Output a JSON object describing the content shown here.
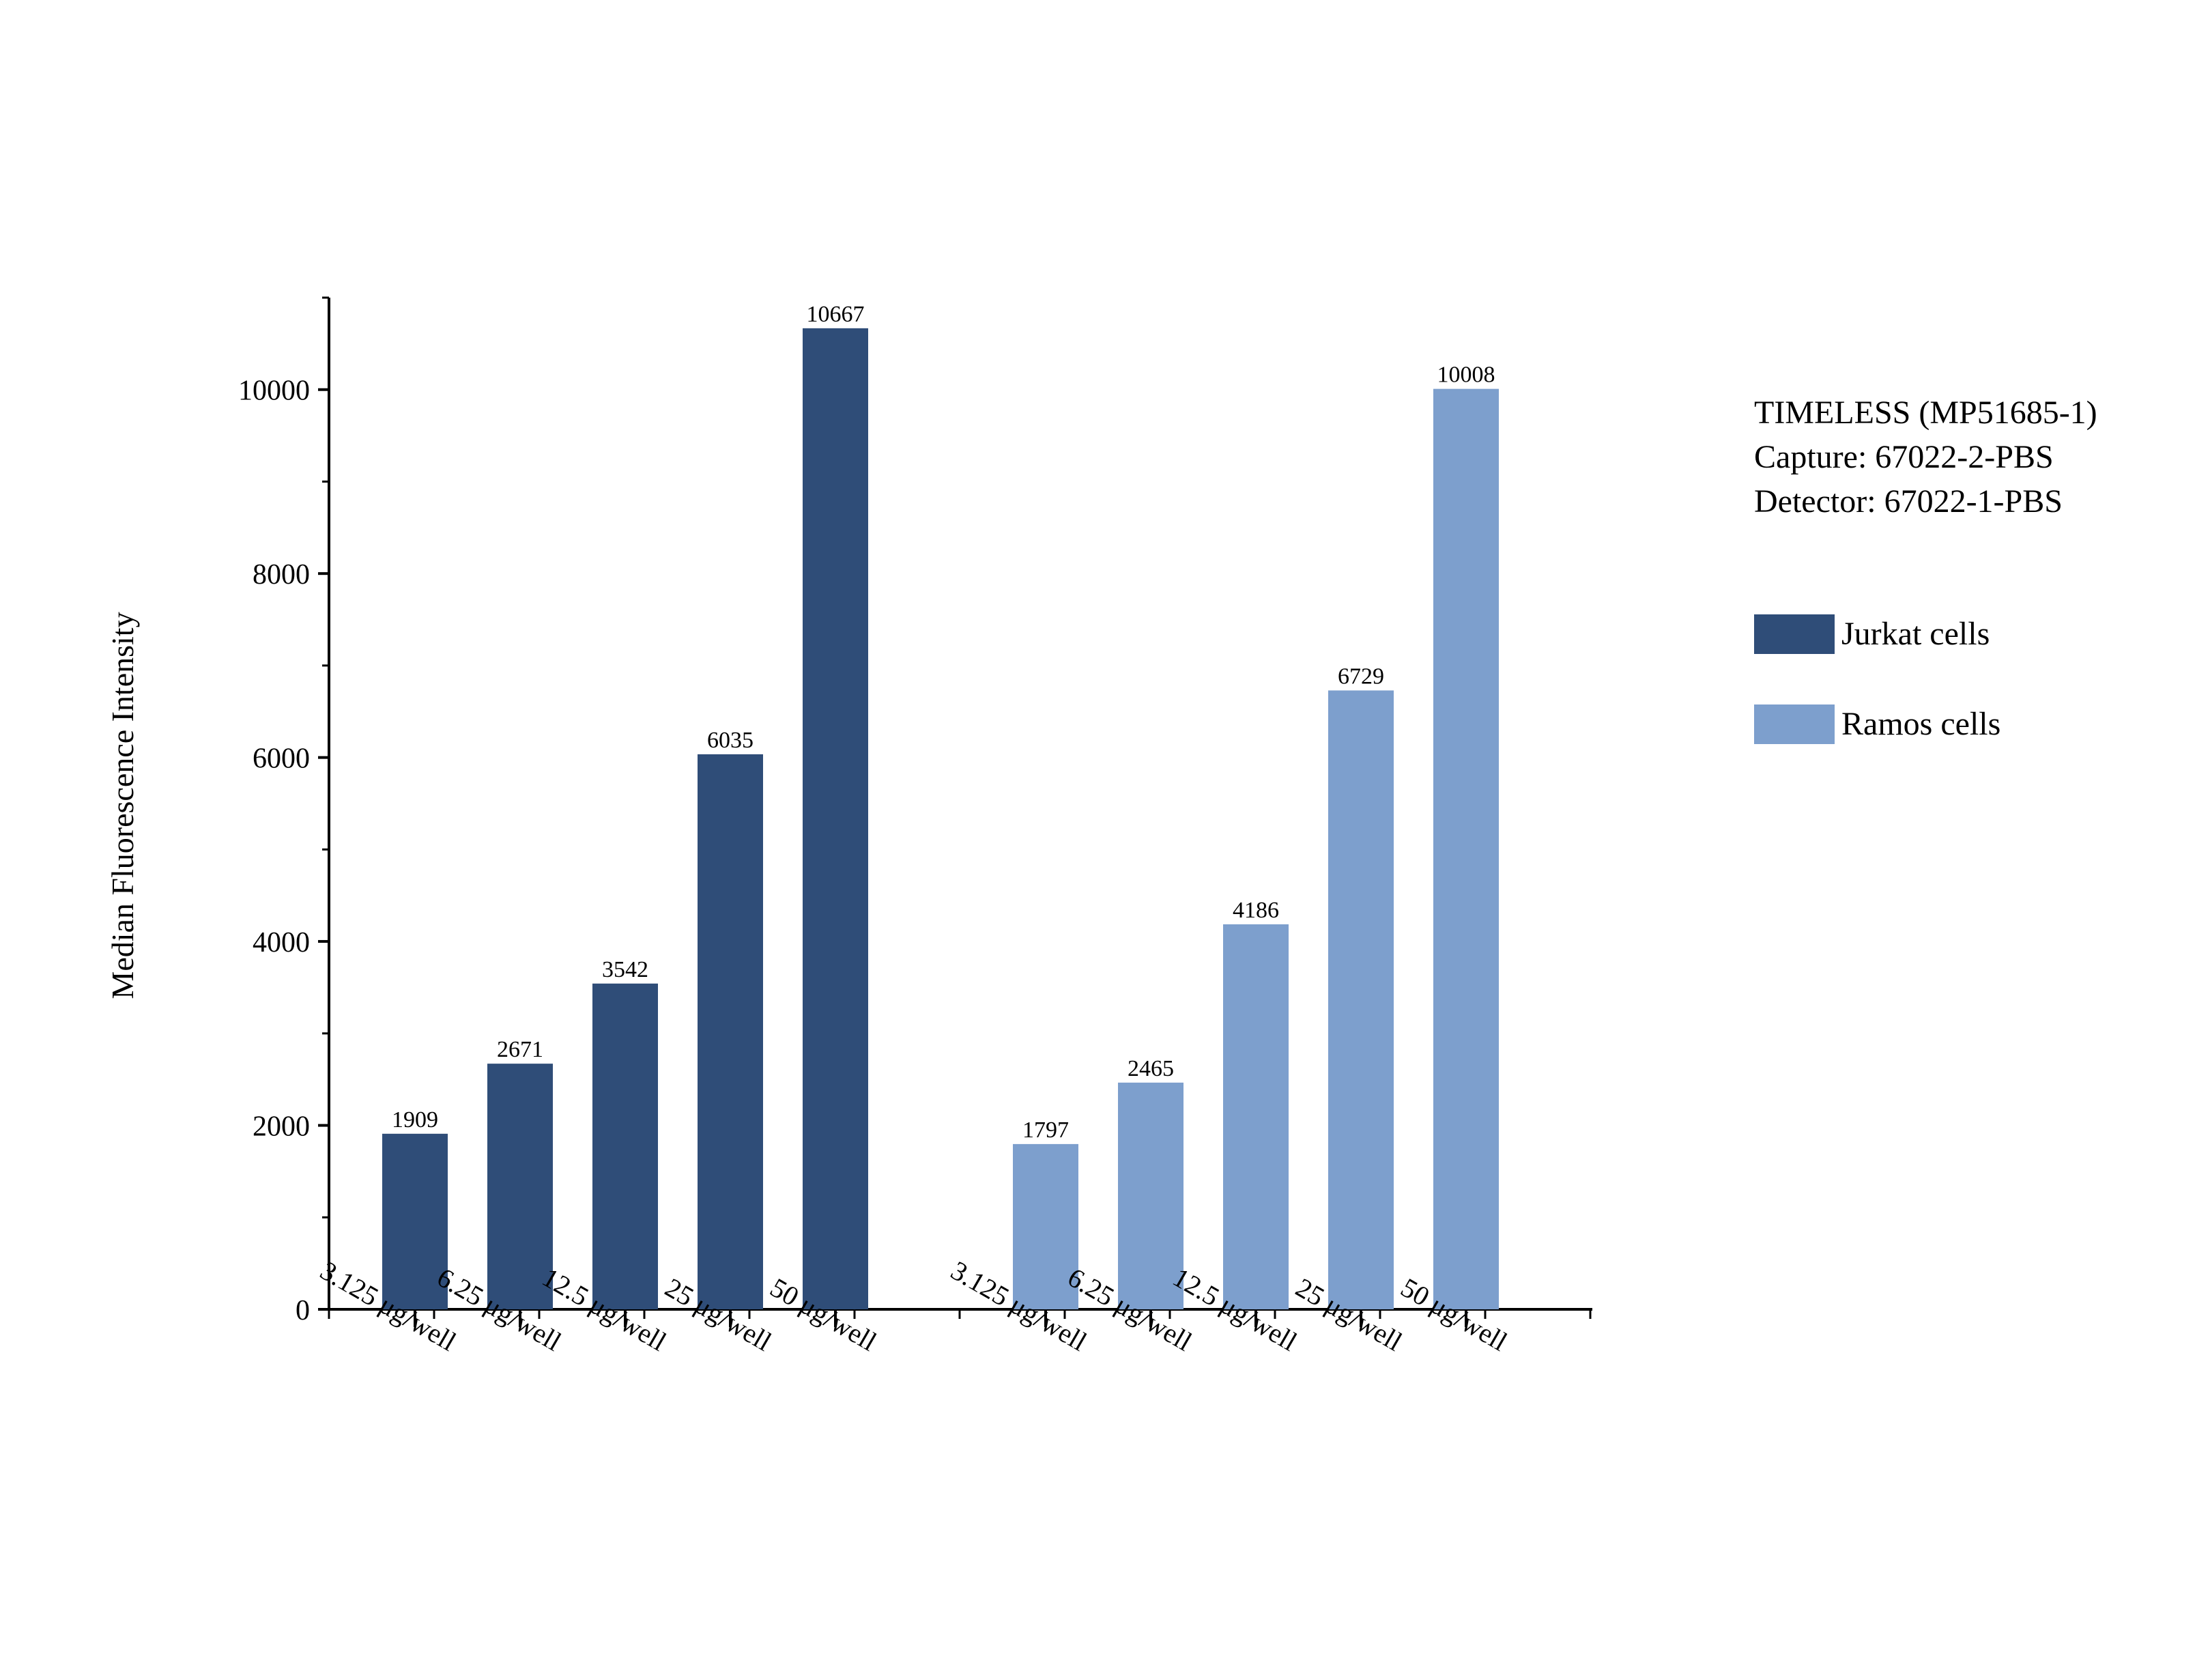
{
  "chart_data": {
    "type": "bar",
    "ylabel": "Median Fluorescence Intensity",
    "xlabel": "",
    "ylim": [
      0,
      11000
    ],
    "yticks": [
      0,
      2000,
      4000,
      6000,
      8000,
      10000
    ],
    "yticks_minor": [
      1000,
      3000,
      5000,
      7000,
      9000,
      11000
    ],
    "grid": false,
    "legend_position": "right",
    "groups": [
      {
        "name": "Jurkat cells",
        "color": "#2f4d78",
        "categories": [
          "3.125 μg/well",
          "6.25 μg/well",
          "12.5 μg/well",
          "25 μg/well",
          "50 μg/well"
        ],
        "values": [
          1909,
          2671,
          3542,
          6035,
          10667
        ]
      },
      {
        "name": "Ramos cells",
        "color": "#7d9fcd",
        "categories": [
          "3.125 μg/well",
          "6.25 μg/well",
          "12.5 μg/well",
          "25 μg/well",
          "50 μg/well"
        ],
        "values": [
          1797,
          2465,
          4186,
          6729,
          10008
        ]
      }
    ]
  },
  "info_panel": {
    "line1": "TIMELESS (MP51685-1)",
    "line2": "Capture: 67022-2-PBS",
    "line3": "Detector: 67022-1-PBS"
  },
  "legend": {
    "items": [
      {
        "label": "Jurkat cells",
        "color": "#2f4d78"
      },
      {
        "label": "Ramos cells",
        "color": "#7d9fcd"
      }
    ]
  }
}
